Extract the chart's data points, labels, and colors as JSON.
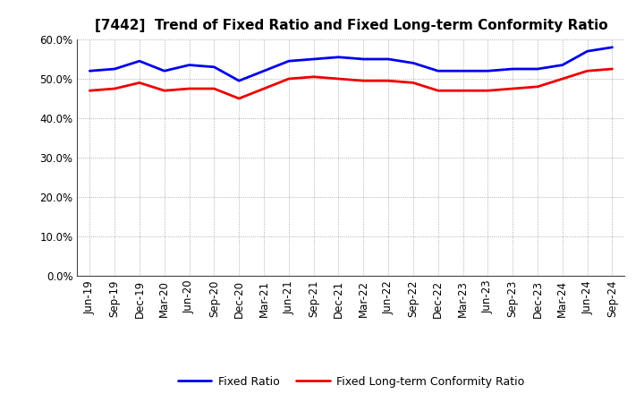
{
  "title": "[7442]  Trend of Fixed Ratio and Fixed Long-term Conformity Ratio",
  "fixed_ratio": [
    52.0,
    52.5,
    54.5,
    52.0,
    53.5,
    53.0,
    49.5,
    52.0,
    54.5,
    55.0,
    55.5,
    55.0,
    55.0,
    54.0,
    52.0,
    52.0,
    52.0,
    52.5,
    52.5,
    53.5,
    57.0,
    58.0
  ],
  "fixed_lt_ratio": [
    47.0,
    47.5,
    49.0,
    47.0,
    47.5,
    47.5,
    45.0,
    47.5,
    50.0,
    50.5,
    50.0,
    49.5,
    49.5,
    49.0,
    47.0,
    47.0,
    47.0,
    47.5,
    48.0,
    50.0,
    52.0,
    52.5
  ],
  "x_labels": [
    "Jun-19",
    "Sep-19",
    "Dec-19",
    "Mar-20",
    "Jun-20",
    "Sep-20",
    "Dec-20",
    "Mar-21",
    "Jun-21",
    "Sep-21",
    "Dec-21",
    "Mar-22",
    "Jun-22",
    "Sep-22",
    "Dec-22",
    "Mar-23",
    "Jun-23",
    "Sep-23",
    "Dec-23",
    "Mar-24",
    "Jun-24",
    "Sep-24"
  ],
  "fixed_ratio_color": "#0000ee",
  "fixed_lt_ratio_color": "#ee0000",
  "background_color": "#ffffff",
  "grid_color": "#999999",
  "ylim_min": 0,
  "ylim_max": 60,
  "ytick_step": 10,
  "legend_fixed": "Fixed Ratio",
  "legend_fixed_lt": "Fixed Long-term Conformity Ratio",
  "title_fontsize": 11,
  "tick_fontsize": 8.5,
  "legend_fontsize": 9
}
